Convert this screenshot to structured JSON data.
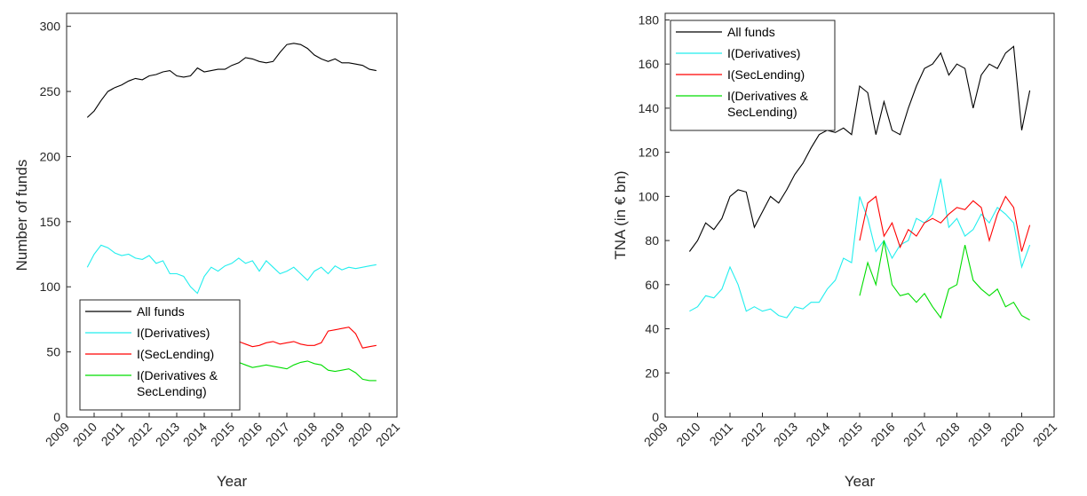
{
  "chart_data": [
    {
      "type": "line",
      "xlabel": "Year",
      "ylabel": "Number of funds",
      "xlim": [
        2009,
        2021
      ],
      "xticks": [
        2009,
        2010,
        2011,
        2012,
        2013,
        2014,
        2015,
        2016,
        2017,
        2018,
        2019,
        2020,
        2021
      ],
      "ylim": [
        0,
        310
      ],
      "yticks": [
        0,
        50,
        100,
        150,
        200,
        250,
        300
      ],
      "legend": "lower left",
      "x": [
        2009.75,
        2010,
        2010.25,
        2010.5,
        2010.75,
        2011,
        2011.25,
        2011.5,
        2011.75,
        2012,
        2012.25,
        2012.5,
        2012.75,
        2013,
        2013.25,
        2013.5,
        2013.75,
        2014,
        2014.25,
        2014.5,
        2014.75,
        2015,
        2015.25,
        2015.5,
        2015.75,
        2016,
        2016.25,
        2016.5,
        2016.75,
        2017,
        2017.25,
        2017.5,
        2017.75,
        2018,
        2018.25,
        2018.5,
        2018.75,
        2019,
        2019.25,
        2019.5,
        2019.75,
        2020,
        2020.25
      ],
      "series": [
        {
          "name": "All funds",
          "color": "#000000",
          "values": [
            230,
            235,
            243,
            250,
            253,
            255,
            258,
            260,
            259,
            262,
            263,
            265,
            266,
            262,
            261,
            262,
            268,
            265,
            266,
            267,
            267,
            270,
            272,
            276,
            275,
            273,
            272,
            273,
            280,
            286,
            287,
            286,
            283,
            278,
            275,
            273,
            275,
            272,
            272,
            271,
            270,
            267,
            266
          ]
        },
        {
          "name": "I(Derivatives)",
          "color": "#22eeee",
          "values": [
            115,
            125,
            132,
            130,
            126,
            124,
            125,
            122,
            121,
            124,
            118,
            120,
            110,
            110,
            108,
            100,
            95,
            108,
            115,
            112,
            116,
            118,
            122,
            118,
            120,
            112,
            120,
            115,
            110,
            112,
            115,
            110,
            105,
            112,
            115,
            110,
            116,
            113,
            115,
            114,
            115,
            116,
            117
          ]
        },
        {
          "name": "I(SecLending)",
          "color": "#ff0000",
          "values": [
            null,
            null,
            null,
            null,
            null,
            null,
            null,
            null,
            null,
            null,
            null,
            null,
            null,
            null,
            null,
            null,
            null,
            null,
            null,
            null,
            null,
            56,
            58,
            56,
            54,
            55,
            57,
            58,
            56,
            57,
            58,
            56,
            55,
            55,
            57,
            66,
            67,
            68,
            69,
            64,
            53,
            54,
            55
          ]
        },
        {
          "name": "I(Derivatives & SecLending)",
          "color": "#00dd00",
          "values": [
            null,
            null,
            null,
            null,
            null,
            null,
            null,
            null,
            null,
            null,
            null,
            null,
            null,
            null,
            null,
            null,
            null,
            null,
            null,
            null,
            null,
            38,
            42,
            40,
            38,
            39,
            40,
            39,
            38,
            37,
            40,
            42,
            43,
            41,
            40,
            36,
            35,
            36,
            37,
            34,
            29,
            28,
            28
          ]
        }
      ]
    },
    {
      "type": "line",
      "xlabel": "Year",
      "ylabel": "TNA (in € bn)",
      "xlim": [
        2009,
        2021
      ],
      "xticks": [
        2009,
        2010,
        2011,
        2012,
        2013,
        2014,
        2015,
        2016,
        2017,
        2018,
        2019,
        2020,
        2021
      ],
      "ylim": [
        0,
        183
      ],
      "yticks": [
        0,
        20,
        40,
        60,
        80,
        100,
        120,
        140,
        160,
        180
      ],
      "legend": "upper left",
      "x": [
        2009.75,
        2010,
        2010.25,
        2010.5,
        2010.75,
        2011,
        2011.25,
        2011.5,
        2011.75,
        2012,
        2012.25,
        2012.5,
        2012.75,
        2013,
        2013.25,
        2013.5,
        2013.75,
        2014,
        2014.25,
        2014.5,
        2014.75,
        2015,
        2015.25,
        2015.5,
        2015.75,
        2016,
        2016.25,
        2016.5,
        2016.75,
        2017,
        2017.25,
        2017.5,
        2017.75,
        2018,
        2018.25,
        2018.5,
        2018.75,
        2019,
        2019.25,
        2019.5,
        2019.75,
        2020,
        2020.25
      ],
      "series": [
        {
          "name": "All funds",
          "color": "#000000",
          "values": [
            75,
            80,
            88,
            85,
            90,
            100,
            103,
            102,
            86,
            93,
            100,
            97,
            103,
            110,
            115,
            122,
            128,
            130,
            129,
            131,
            128,
            150,
            147,
            128,
            143,
            130,
            128,
            140,
            150,
            158,
            160,
            165,
            155,
            160,
            158,
            140,
            155,
            160,
            158,
            165,
            168,
            130,
            148
          ]
        },
        {
          "name": "I(Derivatives)",
          "color": "#22eeee",
          "values": [
            48,
            50,
            55,
            54,
            58,
            68,
            60,
            48,
            50,
            48,
            49,
            46,
            45,
            50,
            49,
            52,
            52,
            58,
            62,
            72,
            70,
            100,
            90,
            75,
            80,
            72,
            78,
            80,
            90,
            88,
            92,
            108,
            86,
            90,
            82,
            85,
            92,
            88,
            95,
            92,
            88,
            68,
            78
          ]
        },
        {
          "name": "I(SecLending)",
          "color": "#ff0000",
          "values": [
            null,
            null,
            null,
            null,
            null,
            null,
            null,
            null,
            null,
            null,
            null,
            null,
            null,
            null,
            null,
            null,
            null,
            null,
            null,
            null,
            null,
            80,
            97,
            100,
            82,
            88,
            77,
            85,
            82,
            88,
            90,
            88,
            92,
            95,
            94,
            98,
            95,
            80,
            92,
            100,
            95,
            75,
            87
          ]
        },
        {
          "name": "I(Derivatives & SecLending)",
          "color": "#00dd00",
          "values": [
            null,
            null,
            null,
            null,
            null,
            null,
            null,
            null,
            null,
            null,
            null,
            null,
            null,
            null,
            null,
            null,
            null,
            null,
            null,
            null,
            null,
            55,
            70,
            60,
            80,
            60,
            55,
            56,
            52,
            56,
            50,
            45,
            58,
            60,
            78,
            62,
            58,
            55,
            58,
            50,
            52,
            46,
            44
          ]
        }
      ]
    }
  ]
}
